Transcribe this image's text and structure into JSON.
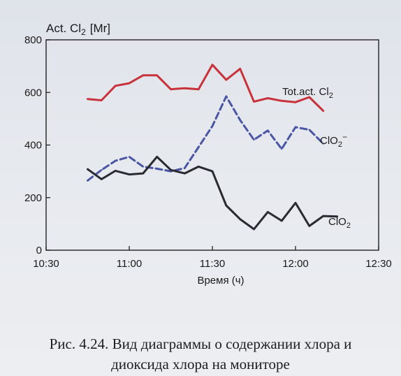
{
  "chart_data": {
    "type": "line",
    "ylabel_main": "Act. Cl",
    "ylabel_sub": "2",
    "ylabel_unit": "[Mr]",
    "xlabel": "Время (ч)",
    "x_ticks": [
      "10:30",
      "11:00",
      "11:30",
      "12:00",
      "12:30"
    ],
    "y_ticks": [
      "0",
      "200",
      "400",
      "600",
      "800"
    ],
    "xlim": [
      "10:30",
      "12:30"
    ],
    "ylim": [
      0,
      800
    ],
    "grid": false,
    "series": [
      {
        "name": "Tot.act. Cl",
        "name_sub": "2",
        "color": "#c8323a",
        "style": "solid",
        "points": [
          [
            "10:45",
            575
          ],
          [
            "10:50",
            570
          ],
          [
            "10:55",
            625
          ],
          [
            "11:00",
            635
          ],
          [
            "11:05",
            665
          ],
          [
            "11:10",
            665
          ],
          [
            "11:15",
            612
          ],
          [
            "11:20",
            616
          ],
          [
            "11:25",
            612
          ],
          [
            "11:30",
            705
          ],
          [
            "11:35",
            648
          ],
          [
            "11:40",
            690
          ],
          [
            "11:45",
            565
          ],
          [
            "11:50",
            578
          ],
          [
            "11:55",
            568
          ],
          [
            "12:00",
            563
          ],
          [
            "12:05",
            582
          ],
          [
            "12:10",
            530
          ]
        ]
      },
      {
        "name": "ClO",
        "name_sub": "2",
        "name_sup": "−",
        "color": "#4a56a4",
        "style": "dashed",
        "points": [
          [
            "10:45",
            265
          ],
          [
            "10:50",
            305
          ],
          [
            "10:55",
            340
          ],
          [
            "11:00",
            355
          ],
          [
            "11:05",
            318
          ],
          [
            "11:10",
            310
          ],
          [
            "11:15",
            300
          ],
          [
            "11:20",
            312
          ],
          [
            "11:25",
            392
          ],
          [
            "11:30",
            472
          ],
          [
            "11:35",
            585
          ],
          [
            "11:40",
            495
          ],
          [
            "11:45",
            420
          ],
          [
            "11:50",
            455
          ],
          [
            "11:55",
            385
          ],
          [
            "12:00",
            468
          ],
          [
            "12:05",
            458
          ],
          [
            "12:10",
            405
          ]
        ]
      },
      {
        "name": "ClO",
        "name_sub": "2",
        "name_sup": "",
        "color": "#2a2a33",
        "style": "solid",
        "points": [
          [
            "10:45",
            308
          ],
          [
            "10:50",
            270
          ],
          [
            "10:55",
            302
          ],
          [
            "11:00",
            288
          ],
          [
            "11:05",
            292
          ],
          [
            "11:10",
            355
          ],
          [
            "11:15",
            305
          ],
          [
            "11:20",
            292
          ],
          [
            "11:25",
            318
          ],
          [
            "11:30",
            300
          ],
          [
            "11:35",
            170
          ],
          [
            "11:40",
            118
          ],
          [
            "11:45",
            80
          ],
          [
            "11:50",
            145
          ],
          [
            "11:55",
            112
          ],
          [
            "12:00",
            180
          ],
          [
            "12:05",
            92
          ],
          [
            "12:10",
            130
          ],
          [
            "12:15",
            128
          ]
        ]
      }
    ]
  },
  "caption": {
    "line1": "Рис. 4.24. Вид диаграммы о содержании хлора и",
    "line2": "диоксида хлора на мониторе"
  }
}
